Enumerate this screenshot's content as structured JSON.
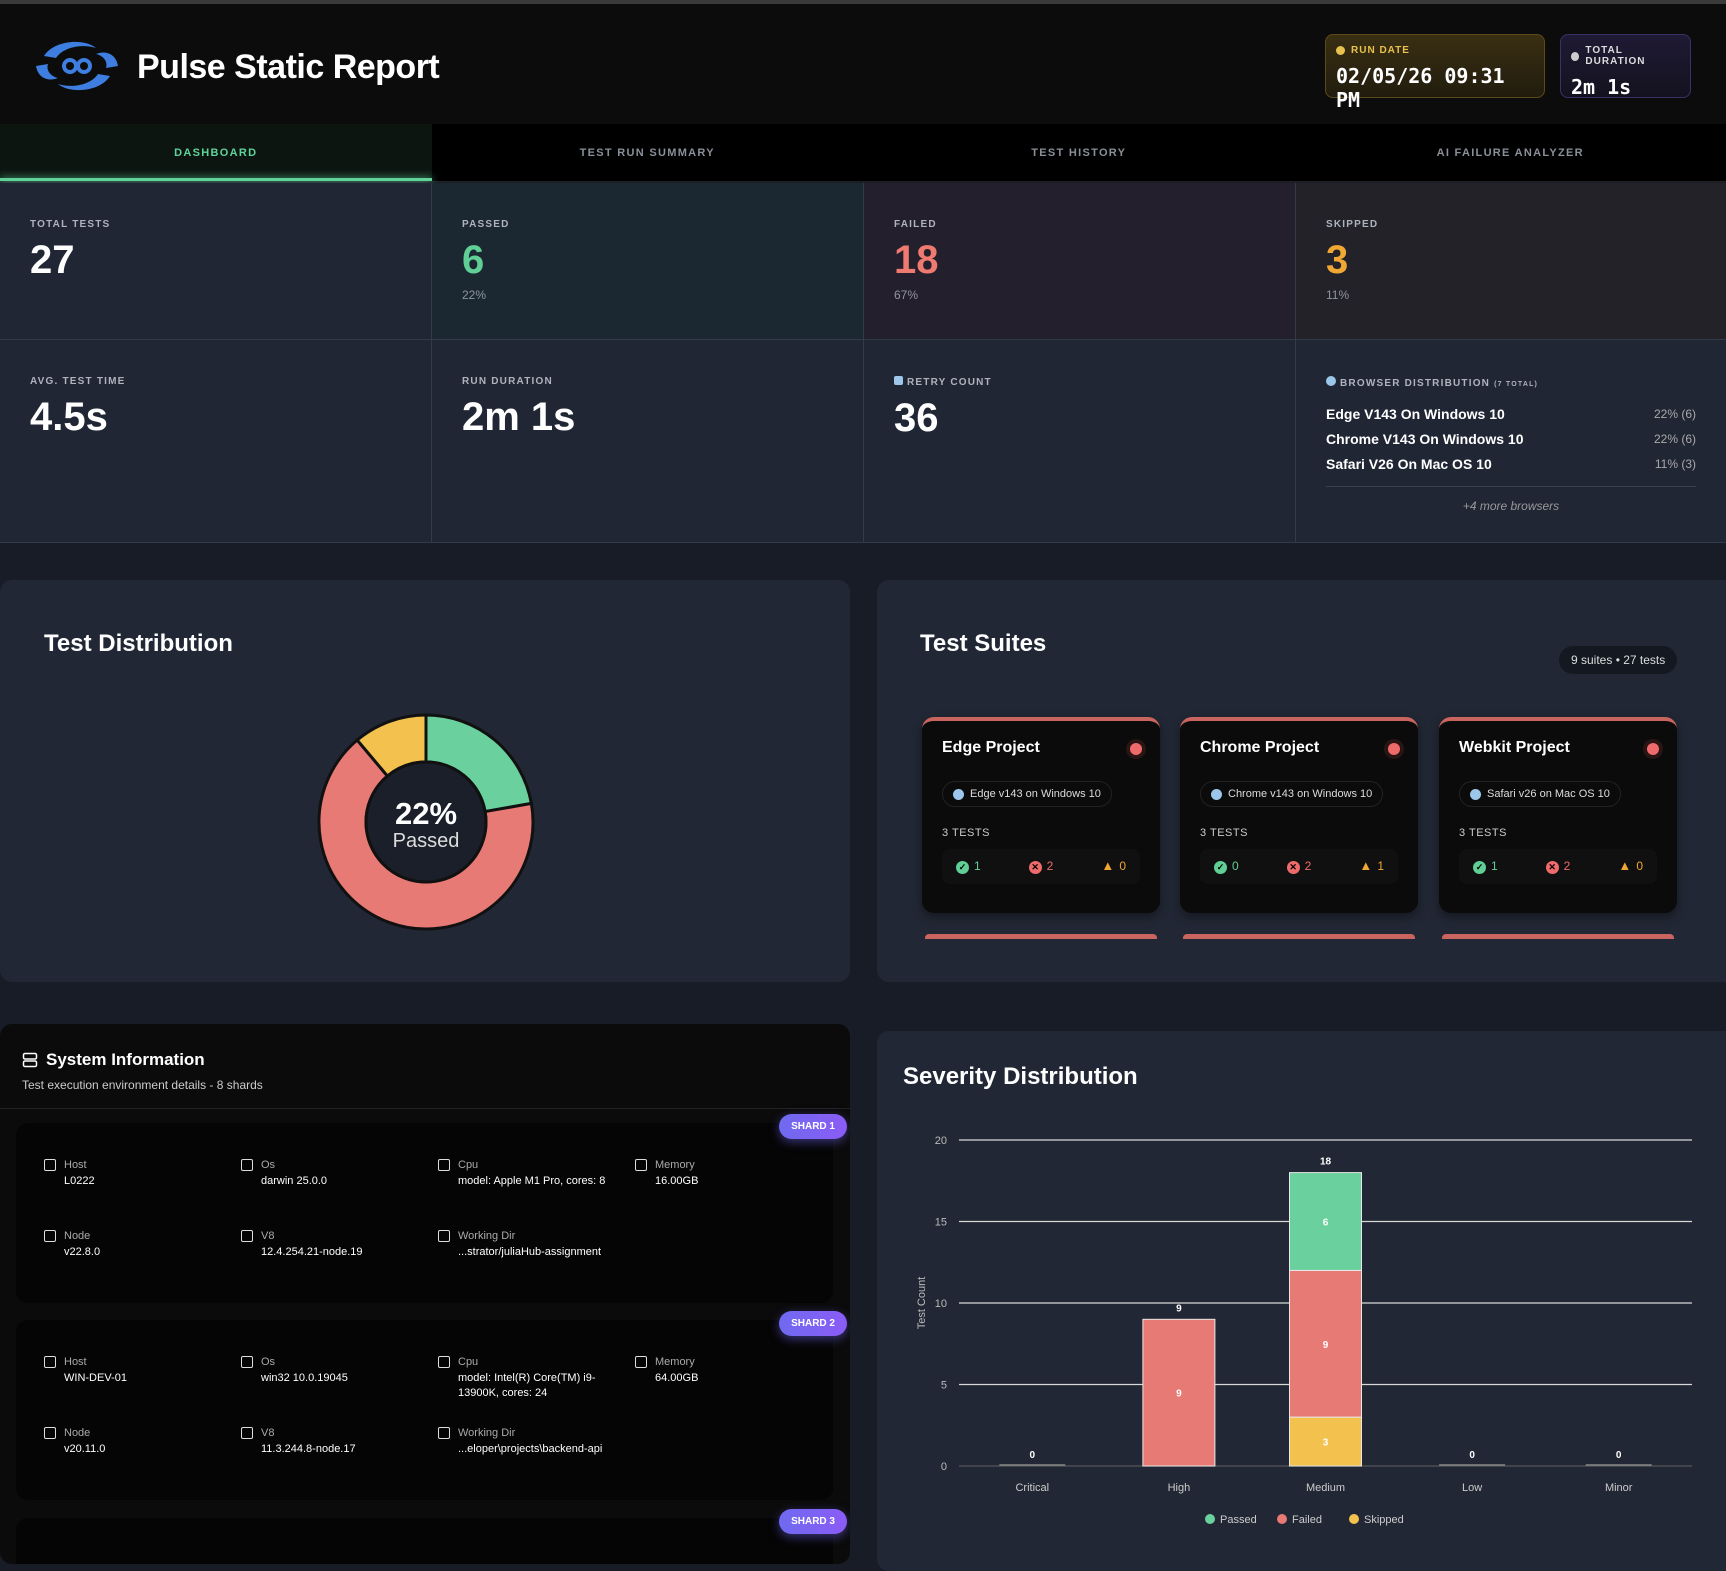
{
  "header": {
    "title": "Pulse Static Report",
    "run_date_label": "RUN DATE",
    "run_date": "02/05/26 09:31 PM",
    "duration_label": "TOTAL DURATION",
    "duration": "2m 1s"
  },
  "tabs": [
    {
      "label": "DASHBOARD",
      "active": true
    },
    {
      "label": "TEST RUN SUMMARY"
    },
    {
      "label": "TEST HISTORY"
    },
    {
      "label": "AI FAILURE ANALYZER"
    }
  ],
  "stats": {
    "total": {
      "label": "TOTAL TESTS",
      "value": "27"
    },
    "passed": {
      "label": "PASSED",
      "value": "6",
      "pct": "22%"
    },
    "failed": {
      "label": "FAILED",
      "value": "18",
      "pct": "67%"
    },
    "skipped": {
      "label": "SKIPPED",
      "value": "3",
      "pct": "11%"
    },
    "avg": {
      "label": "AVG. TEST TIME",
      "value": "4.5s"
    },
    "run": {
      "label": "RUN DURATION",
      "value": "2m 1s"
    },
    "retry": {
      "label": "RETRY COUNT",
      "value": "36"
    },
    "browsers": {
      "label": "BROWSER DISTRIBUTION",
      "total": "(7 TOTAL)",
      "items": [
        {
          "name": "Edge V143 On Windows 10",
          "value": "22% (6)"
        },
        {
          "name": "Chrome V143 On Windows 10",
          "value": "22% (6)"
        },
        {
          "name": "Safari V26 On Mac OS 10",
          "value": "11% (3)"
        }
      ],
      "more": "+4 more browsers"
    }
  },
  "colors": {
    "passed": "#6ad09d",
    "failed": "#e87a75",
    "skipped": "#f2c14e"
  },
  "distribution": {
    "title": "Test Distribution",
    "center_pct": "22%",
    "center_label": "Passed",
    "passed": 6,
    "failed": 18,
    "skipped": 3
  },
  "suites": {
    "title": "Test Suites",
    "summary": "9 suites • 27 tests",
    "items": [
      {
        "name": "Edge Project",
        "browser": "Edge v143 on Windows 10",
        "tests": "3 TESTS",
        "passed": "1",
        "failed": "2",
        "skipped": "0"
      },
      {
        "name": "Chrome Project",
        "browser": "Chrome v143 on Windows 10",
        "tests": "3 TESTS",
        "passed": "0",
        "failed": "2",
        "skipped": "1"
      },
      {
        "name": "Webkit Project",
        "browser": "Safari v26 on Mac OS 10",
        "tests": "3 TESTS",
        "passed": "1",
        "failed": "2",
        "skipped": "0"
      }
    ]
  },
  "system": {
    "title": "System Information",
    "subtitle": "Test execution environment details - 8 shards",
    "shards": [
      {
        "badge": "SHARD 1",
        "host_k": "Host",
        "host": "L0222",
        "os_k": "Os",
        "os": "darwin 25.0.0",
        "cpu_k": "Cpu",
        "cpu": "model: Apple M1 Pro, cores: 8",
        "mem_k": "Memory",
        "mem": "16.00GB",
        "node_k": "Node",
        "node": "v22.8.0",
        "v8_k": "V8",
        "v8": "12.4.254.21-node.19",
        "wd_k": "Working Dir",
        "wd": "...strator/juliaHub-assignment"
      },
      {
        "badge": "SHARD 2",
        "host_k": "Host",
        "host": "WIN-DEV-01",
        "os_k": "Os",
        "os": "win32 10.0.19045",
        "cpu_k": "Cpu",
        "cpu": "model: Intel(R) Core(TM) i9-13900K, cores: 24",
        "mem_k": "Memory",
        "mem": "64.00GB",
        "node_k": "Node",
        "node": "v20.11.0",
        "v8_k": "V8",
        "v8": "11.3.244.8-node.17",
        "wd_k": "Working Dir",
        "wd": "...eloper\\projects\\backend-api"
      },
      {
        "badge": "SHARD 3"
      }
    ]
  },
  "chart_data": {
    "type": "bar",
    "stacked": true,
    "title": "Severity Distribution",
    "ylabel": "Test Count",
    "ylim": [
      0,
      20
    ],
    "yticks": [
      0,
      5,
      10,
      15,
      20
    ],
    "grid": true,
    "legend": "bottom",
    "categories": [
      "Critical",
      "High",
      "Medium",
      "Low",
      "Minor"
    ],
    "totals": [
      0,
      9,
      18,
      0,
      0
    ],
    "series": [
      {
        "name": "Passed",
        "values": [
          0,
          0,
          6,
          0,
          0
        ]
      },
      {
        "name": "Failed",
        "values": [
          0,
          9,
          9,
          0,
          0
        ]
      },
      {
        "name": "Skipped",
        "values": [
          0,
          0,
          3,
          0,
          0
        ]
      }
    ]
  }
}
